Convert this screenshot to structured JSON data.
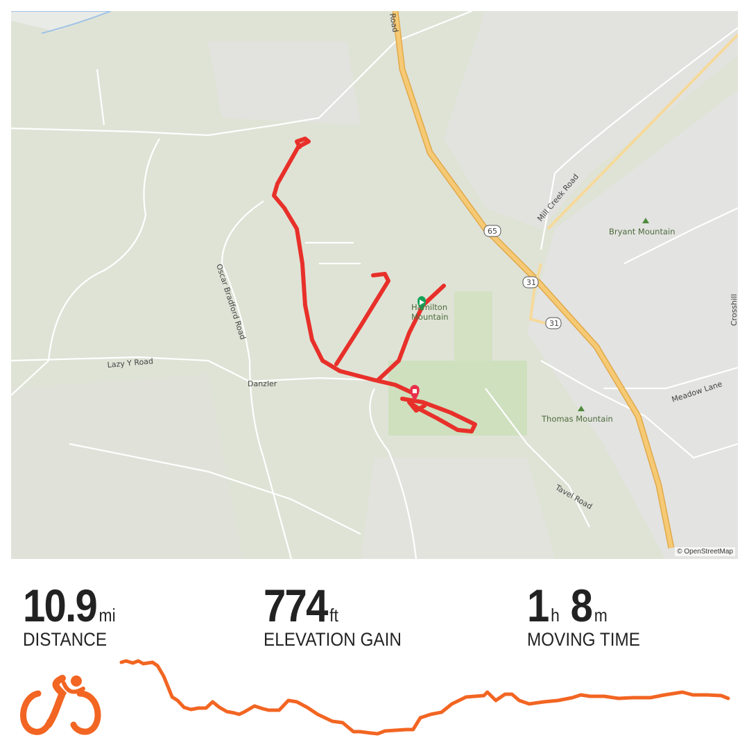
{
  "map": {
    "attribution": "© OpenStreetMap",
    "labels": {
      "road_top": "Road",
      "mill_creek": "Mill Creek Road",
      "bryant": "Bryant Mountain",
      "hamilton_1": "Hamilton",
      "hamilton_2": "Mountain",
      "oscar": "Oscar Bradford Road",
      "lazy_y": "Lazy Y Road",
      "danzler": "Danzler",
      "thomas": "Thomas Mountain",
      "meadow": "Meadow Lane",
      "tavel": "Tavel Road",
      "crosshill": "Crosshill",
      "shield_65": "65",
      "shield_31a": "31",
      "shield_31b": "31"
    },
    "colors": {
      "route": "#e8302a",
      "start": "#14a35a",
      "end": "#e8304a",
      "highway": "#f4c46a"
    }
  },
  "stats": [
    {
      "value": "10.9",
      "unit": "mi",
      "label": "DISTANCE"
    },
    {
      "value": "774",
      "unit": "ft",
      "label": "ELEVATION GAIN"
    },
    {
      "value1": "1",
      "unit1": "h",
      "value2": "8",
      "unit2": "m",
      "label": "MOVING TIME"
    }
  ],
  "activity": {
    "icon": "cycling-icon",
    "color": "#f26522"
  },
  "elevation_profile": [
    [
      0,
      105
    ],
    [
      0.12,
      107
    ],
    [
      0.3,
      104
    ],
    [
      0.44,
      107
    ],
    [
      0.57,
      103
    ],
    [
      0.81,
      105
    ],
    [
      0.94,
      100
    ],
    [
      1.1,
      85
    ],
    [
      1.32,
      55
    ],
    [
      1.46,
      50
    ],
    [
      1.63,
      40
    ],
    [
      1.81,
      37
    ],
    [
      2.0,
      39
    ],
    [
      2.2,
      39
    ],
    [
      2.37,
      48
    ],
    [
      2.55,
      40
    ],
    [
      2.74,
      34
    ],
    [
      2.93,
      32
    ],
    [
      3.06,
      30
    ],
    [
      3.18,
      33
    ],
    [
      3.46,
      42
    ],
    [
      3.68,
      38
    ],
    [
      3.83,
      36
    ],
    [
      4.1,
      36
    ],
    [
      4.34,
      50
    ],
    [
      4.56,
      48
    ],
    [
      4.83,
      40
    ],
    [
      5.1,
      30
    ],
    [
      5.48,
      20
    ],
    [
      5.75,
      18
    ],
    [
      6.03,
      5
    ],
    [
      6.2,
      5
    ],
    [
      6.48,
      3
    ],
    [
      6.66,
      2
    ],
    [
      6.85,
      6
    ],
    [
      7.12,
      7
    ],
    [
      7.4,
      8
    ],
    [
      7.58,
      8
    ],
    [
      7.77,
      25
    ],
    [
      8.04,
      30
    ],
    [
      8.32,
      33
    ],
    [
      8.59,
      45
    ],
    [
      8.96,
      55
    ],
    [
      9.42,
      57
    ],
    [
      9.51,
      62
    ],
    [
      9.73,
      50
    ],
    [
      9.97,
      59
    ],
    [
      10.15,
      59
    ],
    [
      10.34,
      50
    ],
    [
      10.6,
      45
    ],
    [
      10.98,
      48
    ],
    [
      11.35,
      50
    ],
    [
      11.72,
      54
    ],
    [
      11.94,
      58
    ],
    [
      12.18,
      56
    ],
    [
      12.55,
      56
    ],
    [
      12.92,
      53
    ],
    [
      13.29,
      54
    ],
    [
      13.75,
      54
    ],
    [
      14.12,
      58
    ],
    [
      14.58,
      62
    ],
    [
      14.85,
      58
    ],
    [
      15.22,
      58
    ],
    [
      15.59,
      57
    ],
    [
      15.77,
      53
    ]
  ]
}
